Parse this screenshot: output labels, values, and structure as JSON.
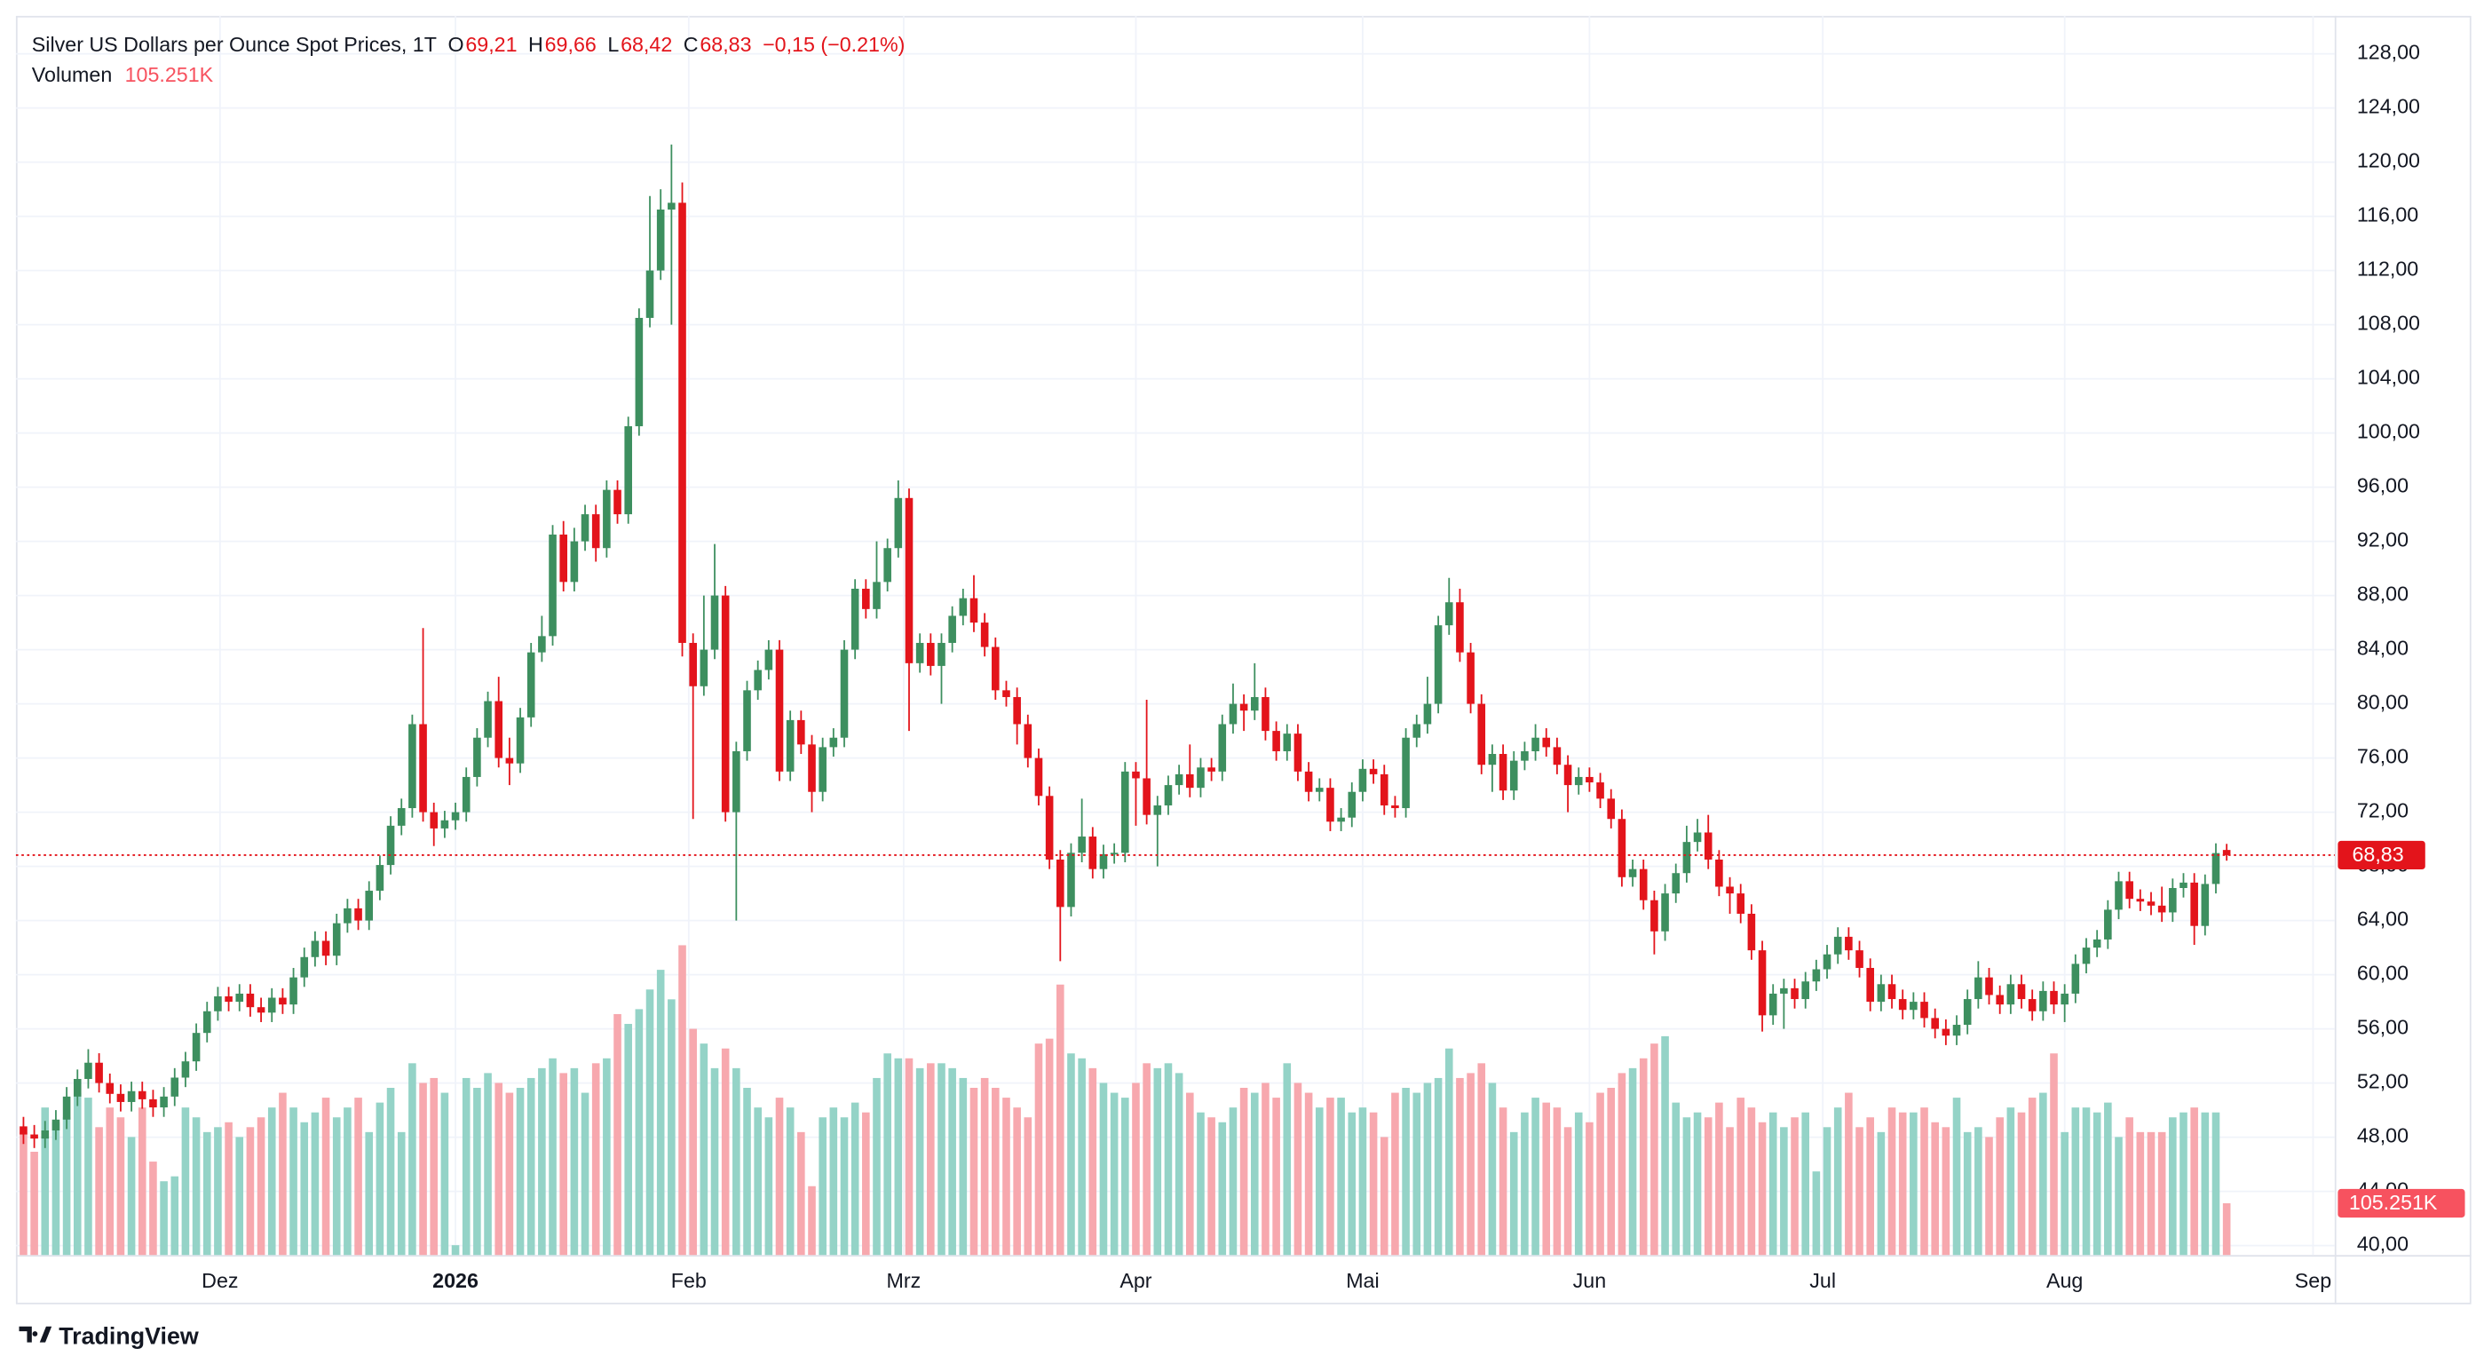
{
  "chart_data": {
    "type": "candlestick",
    "legend": {
      "title": "Silver US Dollars per Ounce Spot Prices, 1T",
      "ohlc": [
        {
          "key": "O",
          "label": "69,21"
        },
        {
          "key": "H",
          "label": "69,66"
        },
        {
          "key": "L",
          "label": "68,42"
        },
        {
          "key": "C",
          "label": "68,83"
        }
      ],
      "change": "−0,15 (−0.21%)"
    },
    "branding": "TradingView",
    "up_color": "#3d8f5f",
    "down_color": "#e3141b",
    "volume_up_color": "#94d3c7",
    "volume_down_color": "#f7a8ae",
    "price_tag": {
      "value": 68.83,
      "label": "68,83",
      "color": "#e3141b"
    },
    "xlim": [
      -0.7,
      214
    ],
    "xticks": [
      {
        "value": 18.2,
        "label": "Dez"
      },
      {
        "value": 40,
        "label": "2026"
      },
      {
        "value": 61.6,
        "label": "Feb"
      },
      {
        "value": 81.5,
        "label": "Mrz"
      },
      {
        "value": 103,
        "label": "Apr"
      },
      {
        "value": 124,
        "label": "Mai"
      },
      {
        "value": 145,
        "label": "Jun"
      },
      {
        "value": 166.6,
        "label": "Jul"
      },
      {
        "value": 189,
        "label": "Aug"
      },
      {
        "value": 212,
        "label": "Sep"
      }
    ],
    "ylim": [
      39.3,
      130.8
    ],
    "yticks": [
      {
        "value": 40,
        "label": "40,00"
      },
      {
        "value": 44,
        "label": "44,00"
      },
      {
        "value": 48,
        "label": "48,00"
      },
      {
        "value": 52,
        "label": "52,00"
      },
      {
        "value": 56,
        "label": "56,00"
      },
      {
        "value": 60,
        "label": "60,00"
      },
      {
        "value": 64,
        "label": "64,00"
      },
      {
        "value": 68,
        "label": "68,00"
      },
      {
        "value": 72,
        "label": "72,00"
      },
      {
        "value": 76,
        "label": "76,00"
      },
      {
        "value": 80,
        "label": "80,00"
      },
      {
        "value": 84,
        "label": "84,00"
      },
      {
        "value": 88,
        "label": "88,00"
      },
      {
        "value": 92,
        "label": "92,00"
      },
      {
        "value": 96,
        "label": "96,00"
      },
      {
        "value": 100,
        "label": "100,00"
      },
      {
        "value": 104,
        "label": "104,00"
      },
      {
        "value": 108,
        "label": "108,00"
      },
      {
        "value": 112,
        "label": "112,00"
      },
      {
        "value": 116,
        "label": "116,00"
      },
      {
        "value": 120,
        "label": "120,00"
      },
      {
        "value": 124,
        "label": "124,00"
      },
      {
        "value": 128,
        "label": "128,00"
      }
    ],
    "grid": true,
    "open": [
      48.8,
      48.2,
      47.9,
      48.5,
      49.3,
      51.0,
      52.3,
      53.5,
      52.0,
      51.2,
      50.6,
      51.4,
      50.8,
      50.2,
      51.0,
      52.4,
      53.6,
      55.7,
      57.3,
      58.4,
      58.0,
      58.6,
      57.6,
      57.2,
      58.3,
      57.8,
      59.8,
      61.3,
      62.5,
      61.4,
      63.8,
      64.9,
      64.0,
      66.2,
      68.1,
      71.0,
      72.3,
      78.5,
      72.0,
      70.8,
      71.4,
      72.0,
      74.6,
      77.5,
      80.2,
      76.0,
      75.6,
      79.0,
      83.8,
      85.0,
      92.5,
      89.0,
      92.0,
      94.0,
      91.5,
      95.8,
      94.0,
      100.5,
      108.5,
      112.0,
      116.5,
      117.0,
      84.5,
      81.3,
      84.0,
      88.0,
      72.0,
      76.5,
      81.0,
      82.5,
      84.0,
      75.0,
      78.8,
      77.0,
      73.5,
      76.8,
      77.5,
      84.0,
      88.5,
      87.0,
      89.0,
      91.5,
      95.2,
      83.0,
      84.5,
      82.8,
      84.5,
      86.5,
      87.8,
      86.0,
      84.2,
      81.0,
      80.5,
      78.5,
      76.0,
      73.2,
      68.5,
      65.0,
      69.0,
      70.2,
      67.8,
      68.9,
      69.0,
      75.0,
      74.5,
      71.8,
      72.5,
      74.0,
      74.8,
      73.8,
      75.3,
      75.0,
      78.5,
      80.0,
      79.5,
      80.5,
      78.0,
      76.5,
      77.8,
      75.0,
      73.5,
      73.8,
      71.3,
      71.6,
      73.5,
      75.2,
      74.8,
      72.5,
      72.3,
      77.5,
      78.5,
      80.0,
      85.8,
      87.5,
      83.8,
      80.0,
      75.5,
      76.3,
      73.6,
      75.8,
      76.5,
      77.5,
      76.8,
      75.5,
      74.0,
      74.6,
      74.2,
      73.0,
      71.5,
      67.2,
      67.8,
      65.5,
      63.2,
      66.0,
      67.5,
      69.8,
      70.5,
      68.5,
      66.5,
      66.0,
      64.5,
      61.8,
      57.0,
      58.6,
      59.0,
      58.2,
      59.5,
      60.4,
      61.5,
      62.8,
      61.8,
      60.5,
      58.0,
      59.3,
      58.2,
      57.4,
      58.0,
      56.8,
      56.0,
      55.5,
      56.3,
      58.2,
      59.8,
      58.5,
      57.8,
      59.3,
      58.2,
      57.3,
      58.8,
      57.8,
      58.6,
      60.8,
      62.0,
      62.6,
      64.8,
      66.9,
      65.6,
      65.4,
      65.1,
      64.6,
      66.4,
      66.8,
      63.6,
      66.7,
      69.21
    ],
    "high": [
      49.5,
      48.9,
      49.2,
      50.0,
      51.7,
      53.0,
      54.5,
      54.2,
      52.7,
      51.9,
      52.1,
      52.1,
      51.5,
      51.7,
      53.1,
      54.3,
      56.4,
      58.0,
      59.1,
      59.1,
      59.3,
      59.3,
      58.3,
      59.0,
      59.0,
      60.5,
      62.0,
      63.2,
      63.2,
      64.5,
      65.6,
      65.6,
      66.9,
      68.8,
      71.7,
      73.0,
      79.2,
      85.6,
      72.7,
      72.1,
      72.7,
      75.3,
      78.2,
      80.9,
      82.0,
      77.5,
      79.7,
      84.5,
      86.5,
      93.2,
      93.5,
      93.0,
      94.7,
      94.7,
      96.5,
      96.5,
      101.2,
      109.2,
      117.5,
      118.0,
      121.3,
      118.5,
      85.2,
      88.0,
      91.8,
      88.7,
      77.2,
      81.7,
      83.2,
      84.7,
      84.7,
      79.5,
      79.5,
      77.7,
      77.5,
      78.2,
      84.7,
      89.2,
      89.2,
      92.0,
      92.2,
      96.5,
      95.9,
      85.2,
      85.2,
      85.2,
      87.2,
      88.5,
      89.5,
      86.7,
      84.9,
      81.7,
      81.2,
      79.2,
      76.7,
      73.9,
      69.2,
      69.7,
      73.0,
      70.9,
      69.6,
      69.7,
      75.7,
      75.7,
      80.3,
      73.2,
      74.7,
      75.5,
      77.0,
      76.0,
      76.0,
      79.2,
      81.5,
      80.7,
      83.0,
      81.2,
      78.7,
      78.5,
      78.5,
      75.7,
      74.5,
      74.5,
      72.3,
      74.2,
      75.9,
      75.9,
      75.5,
      73.2,
      78.2,
      79.2,
      82.0,
      86.5,
      89.3,
      88.5,
      84.5,
      80.7,
      77.0,
      77.0,
      76.5,
      77.2,
      78.5,
      78.2,
      77.5,
      76.2,
      75.3,
      75.3,
      74.9,
      73.7,
      72.2,
      68.5,
      68.5,
      66.2,
      66.7,
      68.2,
      71.0,
      71.5,
      71.8,
      69.2,
      67.2,
      66.7,
      65.2,
      62.5,
      59.3,
      59.7,
      59.7,
      60.2,
      61.1,
      62.2,
      63.5,
      63.5,
      62.5,
      61.2,
      60.0,
      60.0,
      58.9,
      58.7,
      58.7,
      57.5,
      56.7,
      57.0,
      58.9,
      61.0,
      60.5,
      59.2,
      60.0,
      60.0,
      58.9,
      59.5,
      59.5,
      59.3,
      61.5,
      62.7,
      63.3,
      65.5,
      67.6,
      67.6,
      66.3,
      66.1,
      66.5,
      67.1,
      67.5,
      67.5,
      67.4,
      69.7,
      69.66
    ],
    "low": [
      47.5,
      47.2,
      47.2,
      47.8,
      48.6,
      50.3,
      51.6,
      51.3,
      50.5,
      49.9,
      49.9,
      50.1,
      49.5,
      49.5,
      50.3,
      51.7,
      52.9,
      55.0,
      56.6,
      57.3,
      57.3,
      56.9,
      56.5,
      56.5,
      57.1,
      57.1,
      59.1,
      60.6,
      60.7,
      60.7,
      63.1,
      63.3,
      63.3,
      65.5,
      67.4,
      70.3,
      71.6,
      71.3,
      69.5,
      70.1,
      70.7,
      71.3,
      73.9,
      76.8,
      75.3,
      74.0,
      74.9,
      78.3,
      83.1,
      84.3,
      88.3,
      88.3,
      91.3,
      90.5,
      90.8,
      93.3,
      93.3,
      99.8,
      107.8,
      111.3,
      108.0,
      83.5,
      71.5,
      80.6,
      83.3,
      71.3,
      64.0,
      75.8,
      80.3,
      81.8,
      74.3,
      74.3,
      76.3,
      72.0,
      72.8,
      76.1,
      76.8,
      83.3,
      86.3,
      86.3,
      88.3,
      90.8,
      78.0,
      82.3,
      82.1,
      80.0,
      83.8,
      85.8,
      85.3,
      83.5,
      80.3,
      79.8,
      77.0,
      75.3,
      72.5,
      67.8,
      61.0,
      64.3,
      68.3,
      67.1,
      67.1,
      68.2,
      68.3,
      71.0,
      71.1,
      68.0,
      71.8,
      73.3,
      73.1,
      73.1,
      74.3,
      74.3,
      77.8,
      78.0,
      78.8,
      77.3,
      75.8,
      75.8,
      74.3,
      72.8,
      72.8,
      70.6,
      70.6,
      70.9,
      72.8,
      74.1,
      71.8,
      71.6,
      71.6,
      76.8,
      77.8,
      79.3,
      85.1,
      83.1,
      79.3,
      74.8,
      73.5,
      72.9,
      72.9,
      75.1,
      75.8,
      76.1,
      74.8,
      72.0,
      73.3,
      73.5,
      72.3,
      70.8,
      66.5,
      66.5,
      64.8,
      61.5,
      62.5,
      65.3,
      66.8,
      69.1,
      67.8,
      65.8,
      64.5,
      63.8,
      61.1,
      55.8,
      56.3,
      56.0,
      57.5,
      57.5,
      58.8,
      59.7,
      60.8,
      61.1,
      59.8,
      57.3,
      57.3,
      57.5,
      56.7,
      56.7,
      56.1,
      55.3,
      54.8,
      54.8,
      55.6,
      57.5,
      57.8,
      57.1,
      57.1,
      57.5,
      56.6,
      56.6,
      57.1,
      56.5,
      57.9,
      60.1,
      61.3,
      61.9,
      64.1,
      64.9,
      64.7,
      64.4,
      63.9,
      63.9,
      65.7,
      62.2,
      62.9,
      66.0,
      68.42
    ],
    "close": [
      48.2,
      47.9,
      48.5,
      49.3,
      51.0,
      52.3,
      53.5,
      52.0,
      51.2,
      50.6,
      51.4,
      50.8,
      50.2,
      51.0,
      52.4,
      53.6,
      55.7,
      57.3,
      58.4,
      58.0,
      58.6,
      57.6,
      57.2,
      58.3,
      57.8,
      59.8,
      61.3,
      62.5,
      61.4,
      63.8,
      64.9,
      64.0,
      66.2,
      68.1,
      71.0,
      72.3,
      78.5,
      72.0,
      70.8,
      71.4,
      72.0,
      74.6,
      77.5,
      80.2,
      76.0,
      75.6,
      79.0,
      83.8,
      85.0,
      92.5,
      89.0,
      92.0,
      94.0,
      91.5,
      95.8,
      94.0,
      100.5,
      108.5,
      112.0,
      116.5,
      117.0,
      84.5,
      81.3,
      84.0,
      88.0,
      72.0,
      76.5,
      81.0,
      82.5,
      84.0,
      75.0,
      78.8,
      77.0,
      73.5,
      76.8,
      77.5,
      84.0,
      88.5,
      87.0,
      89.0,
      91.5,
      95.2,
      83.0,
      84.5,
      82.8,
      84.5,
      86.5,
      87.8,
      86.0,
      84.2,
      81.0,
      80.5,
      78.5,
      76.0,
      73.2,
      68.5,
      65.0,
      69.0,
      70.2,
      67.8,
      68.9,
      69.0,
      75.0,
      74.5,
      71.8,
      72.5,
      74.0,
      74.8,
      73.8,
      75.3,
      75.0,
      78.5,
      80.0,
      79.5,
      80.5,
      78.0,
      76.5,
      77.8,
      75.0,
      73.5,
      73.8,
      71.3,
      71.6,
      73.5,
      75.2,
      74.8,
      72.5,
      72.3,
      77.5,
      78.5,
      80.0,
      85.8,
      87.5,
      83.8,
      80.0,
      75.5,
      76.3,
      73.6,
      75.8,
      76.5,
      77.5,
      76.8,
      75.5,
      74.0,
      74.6,
      74.2,
      73.0,
      71.5,
      67.2,
      67.8,
      65.5,
      63.2,
      66.0,
      67.5,
      69.8,
      70.5,
      68.5,
      66.5,
      66.0,
      64.5,
      61.8,
      57.0,
      58.6,
      59.0,
      58.2,
      59.5,
      60.4,
      61.5,
      62.8,
      61.8,
      60.5,
      58.0,
      59.3,
      58.2,
      57.4,
      58.0,
      56.8,
      56.0,
      55.5,
      56.3,
      58.2,
      59.8,
      58.5,
      57.8,
      59.3,
      58.2,
      57.3,
      58.8,
      57.8,
      58.6,
      60.8,
      62.0,
      62.6,
      64.8,
      66.9,
      65.6,
      65.4,
      65.1,
      64.6,
      66.4,
      66.8,
      63.6,
      66.7,
      68.98,
      68.83
    ],
    "volume": {
      "name": "Volumen",
      "last_label": "105.251K",
      "tag_color": "#f7525f",
      "values": [
        250000,
        210000,
        300000,
        270000,
        280000,
        330000,
        320000,
        260000,
        300000,
        280000,
        240000,
        300000,
        190000,
        150000,
        160000,
        300000,
        280000,
        250000,
        260000,
        270000,
        240000,
        260000,
        280000,
        300000,
        330000,
        300000,
        270000,
        290000,
        320000,
        280000,
        300000,
        320000,
        250000,
        310000,
        340000,
        250000,
        390000,
        350000,
        360000,
        330000,
        20000,
        360000,
        340000,
        370000,
        350000,
        330000,
        340000,
        360000,
        380000,
        400000,
        370000,
        380000,
        330000,
        390000,
        400000,
        490000,
        470000,
        500000,
        540000,
        580000,
        520000,
        630000,
        460000,
        430000,
        380000,
        420000,
        380000,
        340000,
        300000,
        280000,
        320000,
        300000,
        250000,
        140000,
        280000,
        300000,
        280000,
        310000,
        290000,
        360000,
        410000,
        400000,
        400000,
        380000,
        390000,
        390000,
        380000,
        360000,
        340000,
        360000,
        340000,
        320000,
        300000,
        280000,
        430000,
        440000,
        550000,
        410000,
        400000,
        380000,
        350000,
        330000,
        320000,
        350000,
        390000,
        380000,
        390000,
        370000,
        330000,
        290000,
        280000,
        270000,
        300000,
        340000,
        330000,
        350000,
        320000,
        390000,
        350000,
        330000,
        300000,
        320000,
        320000,
        290000,
        300000,
        290000,
        240000,
        330000,
        340000,
        330000,
        350000,
        360000,
        420000,
        360000,
        370000,
        390000,
        350000,
        300000,
        250000,
        290000,
        320000,
        310000,
        300000,
        260000,
        290000,
        270000,
        330000,
        340000,
        370000,
        380000,
        400000,
        430000,
        445000,
        310000,
        280000,
        290000,
        280000,
        310000,
        260000,
        320000,
        300000,
        270000,
        290000,
        260000,
        280000,
        290000,
        170000,
        260000,
        300000,
        330000,
        260000,
        280000,
        250000,
        300000,
        290000,
        290000,
        300000,
        270000,
        260000,
        320000,
        250000,
        260000,
        240000,
        280000,
        300000,
        290000,
        320000,
        330000,
        410000,
        250000,
        300000,
        300000,
        290000,
        310000,
        240000,
        280000,
        250000,
        250000,
        250000,
        280000,
        290000,
        300000,
        290000,
        290000,
        105251
      ]
    }
  }
}
